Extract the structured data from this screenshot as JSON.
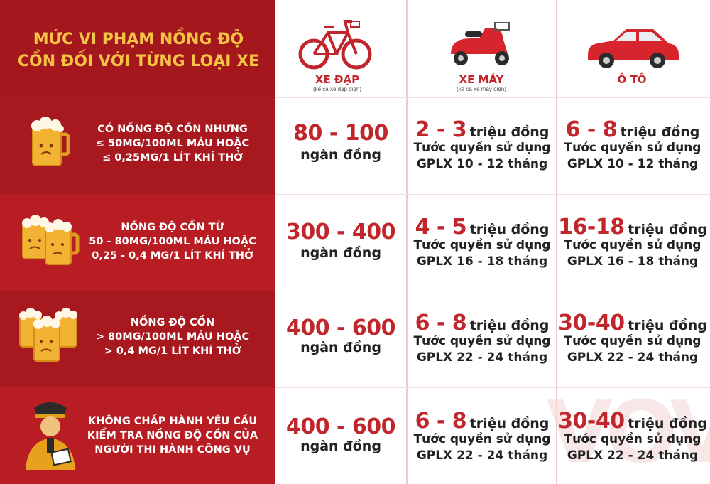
{
  "title": {
    "line1": "MỨC VI PHẠM NỒNG ĐỘ",
    "line2": "CỒN ĐỐI VỚI TỪNG LOẠI XE"
  },
  "vehicles": [
    {
      "label": "XE ĐẠP",
      "sub": "(kể cả xe đạp điện)",
      "icon": "bicycle-icon"
    },
    {
      "label": "XE MÁY",
      "sub": "(kể cả xe máy điện)",
      "icon": "scooter-icon"
    },
    {
      "label": "Ô TÔ",
      "sub": "",
      "icon": "car-icon"
    }
  ],
  "rows": [
    {
      "condition": "CÓ NỒNG ĐỘ CỒN NHƯNG\n≤ 50MG/100ML MÁU HOẶC\n≤ 0,25MG/1 LÍT KHÍ THỞ",
      "icon": "beer-mug-icon",
      "bike": {
        "amount": "80 - 100",
        "unit": "ngàn đồng"
      },
      "moto": {
        "amount": "2 - 3",
        "unit": "triệu đồng",
        "line2": "Tước quyền sử dụng",
        "line3": "GPLX 10 - 12 tháng"
      },
      "car": {
        "amount": "6 - 8",
        "unit": "triệu đồng",
        "line2": "Tước quyền sử dụng",
        "line3": "GPLX 10 - 12 tháng"
      }
    },
    {
      "condition": "NỒNG ĐỘ CỒN TỪ\n50 - 80MG/100ML MÁU HOẶC\n0,25 - 0,4 MG/1 LÍT KHÍ THỞ",
      "icon": "beer-mugs-icon",
      "bike": {
        "amount": "300 - 400",
        "unit": "ngàn đồng"
      },
      "moto": {
        "amount": "4 - 5",
        "unit": "triệu đồng",
        "line2": "Tước quyền sử dụng",
        "line3": "GPLX 16 - 18 tháng"
      },
      "car": {
        "amount": "16-18",
        "unit": "triệu đồng",
        "line2": "Tước quyền sử dụng",
        "line3": "GPLX 16 - 18 tháng"
      }
    },
    {
      "condition": "NỒNG ĐỘ CỒN\n> 80MG/100ML MÁU HOẶC\n> 0,4 MG/1 LÍT KHÍ THỞ",
      "icon": "beer-mugs-icon",
      "bike": {
        "amount": "400 - 600",
        "unit": "ngàn đồng"
      },
      "moto": {
        "amount": "6 - 8",
        "unit": "triệu đồng",
        "line2": "Tước quyền sử dụng",
        "line3": "GPLX 22 - 24 tháng"
      },
      "car": {
        "amount": "30-40",
        "unit": "triệu đồng",
        "line2": "Tước quyền sử dụng",
        "line3": "GPLX 22 - 24 tháng"
      }
    },
    {
      "condition": "KHÔNG CHẤP HÀNH YÊU CẦU\nKIỂM TRA NỒNG ĐỘ CỒN CỦA\nNGƯỜI THI HÀNH CÔNG VỤ",
      "icon": "police-officer-icon",
      "bike": {
        "amount": "400 - 600",
        "unit": "ngàn đồng"
      },
      "moto": {
        "amount": "6 - 8",
        "unit": "triệu đồng",
        "line2": "Tước quyền sử dụng",
        "line3": "GPLX 22 - 24 tháng"
      },
      "car": {
        "amount": "30-40",
        "unit": "triệu đồng",
        "line2": "Tước quyền sử dụng",
        "line3": "GPLX 22 - 24 tháng"
      }
    }
  ],
  "watermark": "VOV",
  "colors": {
    "red": "#b81d24",
    "dark_red": "#a3171d",
    "gold": "#f6c445",
    "text_red": "#c0262b"
  }
}
